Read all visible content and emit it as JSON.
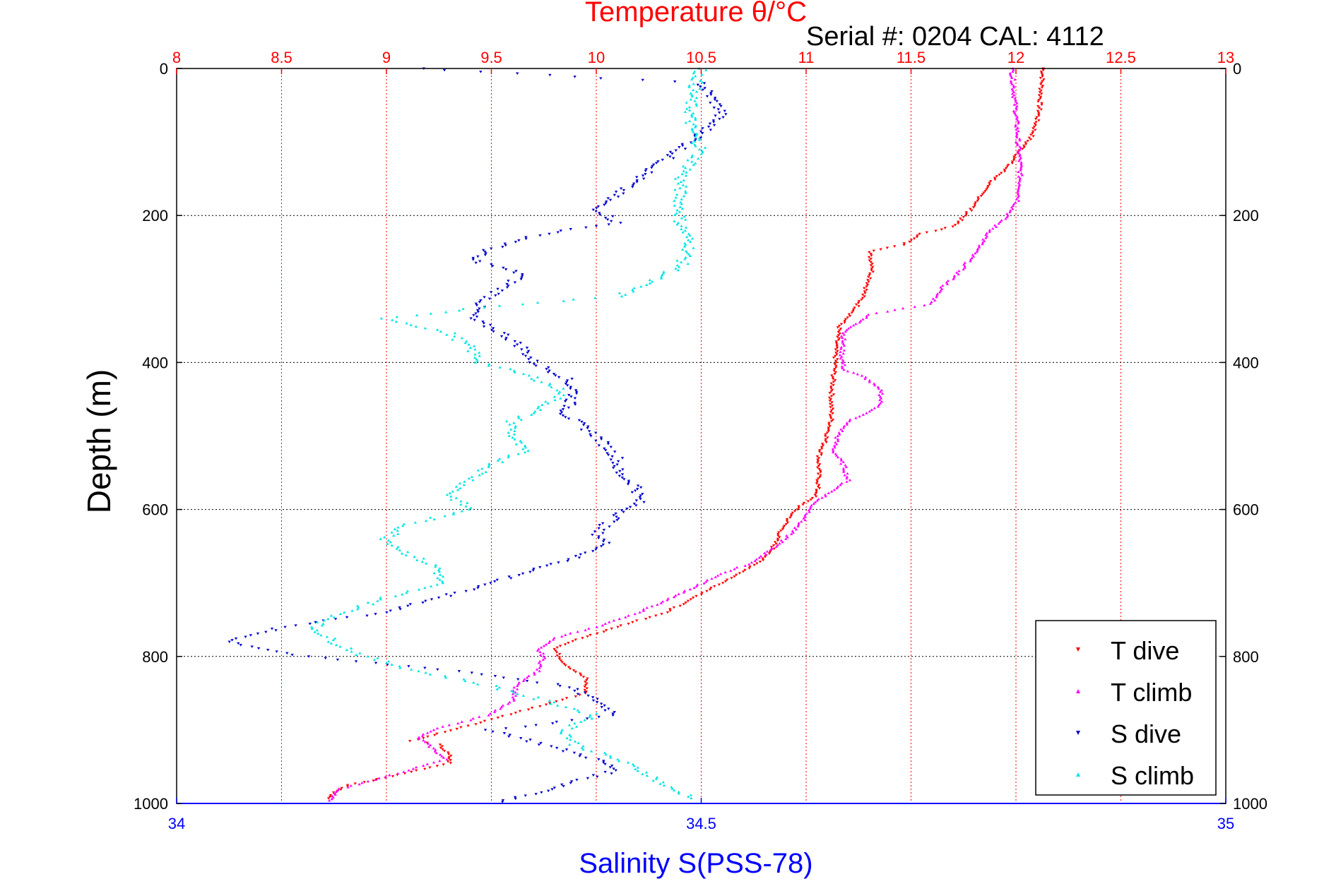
{
  "chart_data": {
    "type": "scatter",
    "title": "Temperature θ/°C",
    "serial_label": "Serial #: 0204  CAL: 4112",
    "xlabel_bottom": "Salinity S(PSS-78)",
    "ylabel": "Depth (m)",
    "temperature_axis": {
      "range": [
        8,
        13
      ],
      "ticks": [
        "8",
        "8.5",
        "9",
        "9.5",
        "10",
        "10.5",
        "11",
        "11.5",
        "12",
        "12.5",
        "13"
      ],
      "color": "#ff0000"
    },
    "salinity_axis": {
      "range": [
        34,
        35
      ],
      "ticks": [
        "34",
        "34.5",
        "35"
      ],
      "color": "#0000ff"
    },
    "depth_axis": {
      "range": [
        0,
        1000
      ],
      "reversed": true,
      "ticks": [
        "0",
        "200",
        "400",
        "600",
        "800",
        "1000"
      ]
    },
    "grid": true,
    "legend": {
      "placement": "bottom-right"
    },
    "series": [
      {
        "name": "T dive",
        "axis": "temperature",
        "color": "#ff0000",
        "points": [
          [
            12.13,
            0
          ],
          [
            12.12,
            30
          ],
          [
            12.11,
            60
          ],
          [
            12.08,
            90
          ],
          [
            12.0,
            120
          ],
          [
            11.94,
            140
          ],
          [
            11.86,
            160
          ],
          [
            11.82,
            180
          ],
          [
            11.76,
            200
          ],
          [
            11.7,
            215
          ],
          [
            11.55,
            225
          ],
          [
            11.46,
            240
          ],
          [
            11.3,
            250
          ],
          [
            11.32,
            270
          ],
          [
            11.3,
            290
          ],
          [
            11.27,
            310
          ],
          [
            11.23,
            330
          ],
          [
            11.16,
            350
          ],
          [
            11.14,
            380
          ],
          [
            11.14,
            400
          ],
          [
            11.13,
            420
          ],
          [
            11.12,
            450
          ],
          [
            11.12,
            480
          ],
          [
            11.1,
            500
          ],
          [
            11.06,
            530
          ],
          [
            11.06,
            560
          ],
          [
            11.05,
            580
          ],
          [
            10.95,
            600
          ],
          [
            10.9,
            620
          ],
          [
            10.86,
            640
          ],
          [
            10.83,
            660
          ],
          [
            10.73,
            680
          ],
          [
            10.6,
            700
          ],
          [
            10.47,
            720
          ],
          [
            10.33,
            740
          ],
          [
            10.1,
            760
          ],
          [
            9.93,
            775
          ],
          [
            9.8,
            790
          ],
          [
            9.85,
            810
          ],
          [
            9.95,
            830
          ],
          [
            9.95,
            850
          ],
          [
            9.7,
            870
          ],
          [
            9.45,
            890
          ],
          [
            9.25,
            905
          ],
          [
            9.12,
            915
          ],
          [
            9.25,
            920
          ],
          [
            9.3,
            935
          ],
          [
            9.3,
            945
          ],
          [
            9.15,
            955
          ],
          [
            9.0,
            965
          ],
          [
            8.82,
            975
          ],
          [
            8.75,
            985
          ],
          [
            8.73,
            995
          ]
        ]
      },
      {
        "name": "T climb",
        "axis": "temperature",
        "color": "#ff00ff",
        "points": [
          [
            11.98,
            0
          ],
          [
            11.99,
            30
          ],
          [
            12.0,
            60
          ],
          [
            12.01,
            100
          ],
          [
            12.02,
            130
          ],
          [
            12.02,
            160
          ],
          [
            12.01,
            180
          ],
          [
            11.96,
            200
          ],
          [
            11.88,
            220
          ],
          [
            11.78,
            260
          ],
          [
            11.72,
            280
          ],
          [
            11.64,
            300
          ],
          [
            11.6,
            320
          ],
          [
            11.3,
            335
          ],
          [
            11.18,
            360
          ],
          [
            11.17,
            390
          ],
          [
            11.18,
            410
          ],
          [
            11.28,
            420
          ],
          [
            11.36,
            440
          ],
          [
            11.35,
            460
          ],
          [
            11.2,
            480
          ],
          [
            11.15,
            500
          ],
          [
            11.13,
            520
          ],
          [
            11.18,
            540
          ],
          [
            11.2,
            560
          ],
          [
            11.1,
            580
          ],
          [
            11.04,
            590
          ],
          [
            11.0,
            610
          ],
          [
            10.9,
            640
          ],
          [
            10.76,
            670
          ],
          [
            10.58,
            690
          ],
          [
            10.4,
            715
          ],
          [
            10.2,
            740
          ],
          [
            10.0,
            760
          ],
          [
            9.8,
            775
          ],
          [
            9.72,
            790
          ],
          [
            9.75,
            800
          ],
          [
            9.72,
            820
          ],
          [
            9.62,
            840
          ],
          [
            9.6,
            860
          ],
          [
            9.48,
            880
          ],
          [
            9.22,
            900
          ],
          [
            9.15,
            910
          ],
          [
            9.22,
            925
          ],
          [
            9.28,
            940
          ],
          [
            9.1,
            955
          ],
          [
            8.92,
            970
          ],
          [
            8.78,
            980
          ],
          [
            8.72,
            998
          ]
        ]
      },
      {
        "name": "S dive",
        "axis": "salinity",
        "color": "#0000cc",
        "points": [
          [
            34.23,
            0
          ],
          [
            34.5,
            20
          ],
          [
            34.51,
            40
          ],
          [
            34.52,
            60
          ],
          [
            34.5,
            90
          ],
          [
            34.47,
            120
          ],
          [
            34.44,
            150
          ],
          [
            34.42,
            170
          ],
          [
            34.4,
            190
          ],
          [
            34.42,
            210
          ],
          [
            34.35,
            225
          ],
          [
            34.3,
            245
          ],
          [
            34.28,
            260
          ],
          [
            34.33,
            280
          ],
          [
            34.31,
            300
          ],
          [
            34.29,
            320
          ],
          [
            34.28,
            340
          ],
          [
            34.31,
            360
          ],
          [
            34.33,
            380
          ],
          [
            34.34,
            400
          ],
          [
            34.37,
            420
          ],
          [
            34.38,
            440
          ],
          [
            34.37,
            470
          ],
          [
            34.4,
            500
          ],
          [
            34.42,
            530
          ],
          [
            34.42,
            550
          ],
          [
            34.44,
            570
          ],
          [
            34.44,
            590
          ],
          [
            34.42,
            610
          ],
          [
            34.4,
            630
          ],
          [
            34.41,
            650
          ],
          [
            34.37,
            670
          ],
          [
            34.3,
            700
          ],
          [
            34.25,
            720
          ],
          [
            34.2,
            740
          ],
          [
            34.1,
            760
          ],
          [
            34.05,
            780
          ],
          [
            34.12,
            800
          ],
          [
            34.27,
            820
          ],
          [
            34.37,
            840
          ],
          [
            34.4,
            860
          ],
          [
            34.42,
            880
          ],
          [
            34.3,
            900
          ],
          [
            34.35,
            920
          ],
          [
            34.4,
            940
          ],
          [
            34.42,
            955
          ],
          [
            34.38,
            970
          ],
          [
            34.35,
            985
          ],
          [
            34.3,
            1000
          ]
        ]
      },
      {
        "name": "S climb",
        "axis": "salinity",
        "color": "#00e5e5",
        "points": [
          [
            34.5,
            0
          ],
          [
            34.49,
            40
          ],
          [
            34.49,
            80
          ],
          [
            34.5,
            110
          ],
          [
            34.48,
            150
          ],
          [
            34.48,
            180
          ],
          [
            34.48,
            210
          ],
          [
            34.49,
            240
          ],
          [
            34.48,
            270
          ],
          [
            34.45,
            290
          ],
          [
            34.42,
            310
          ],
          [
            34.29,
            325
          ],
          [
            34.2,
            340
          ],
          [
            34.26,
            360
          ],
          [
            34.28,
            380
          ],
          [
            34.29,
            400
          ],
          [
            34.34,
            420
          ],
          [
            34.37,
            440
          ],
          [
            34.35,
            460
          ],
          [
            34.32,
            480
          ],
          [
            34.32,
            500
          ],
          [
            34.33,
            520
          ],
          [
            34.3,
            540
          ],
          [
            34.28,
            560
          ],
          [
            34.26,
            580
          ],
          [
            34.28,
            600
          ],
          [
            34.22,
            620
          ],
          [
            34.2,
            640
          ],
          [
            34.22,
            660
          ],
          [
            34.25,
            680
          ],
          [
            34.25,
            700
          ],
          [
            34.2,
            720
          ],
          [
            34.16,
            740
          ],
          [
            34.13,
            760
          ],
          [
            34.15,
            780
          ],
          [
            34.18,
            800
          ],
          [
            34.23,
            820
          ],
          [
            34.3,
            840
          ],
          [
            34.35,
            860
          ],
          [
            34.4,
            880
          ],
          [
            34.37,
            900
          ],
          [
            34.38,
            920
          ],
          [
            34.42,
            940
          ],
          [
            34.45,
            960
          ],
          [
            34.47,
            980
          ],
          [
            34.5,
            995
          ]
        ]
      }
    ]
  }
}
